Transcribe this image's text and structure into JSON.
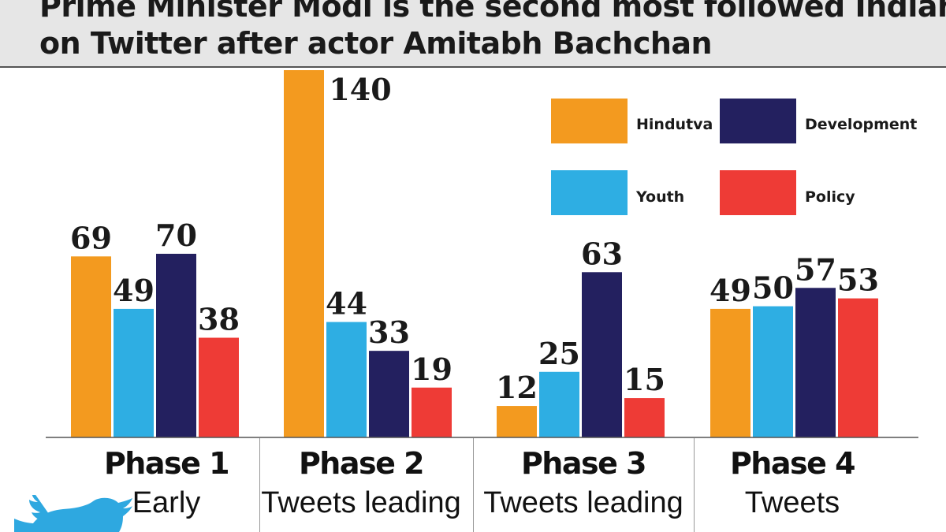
{
  "header": {
    "title_line_1": "Prime Minister Modi is the second most followed Indian",
    "title_line_2": "on Twitter after actor Amitabh Bachchan"
  },
  "colors": {
    "Hindutva": "#f39a1f",
    "Youth": "#2eaee3",
    "Development": "#23205f",
    "Policy": "#ee3b36"
  },
  "chart_data": {
    "type": "bar",
    "categories": [
      "Phase 1",
      "Phase 2",
      "Phase 3",
      "Phase 4"
    ],
    "category_descriptions": [
      "Early",
      "Tweets leading",
      "Tweets leading",
      "Tweets"
    ],
    "series": [
      {
        "name": "Hindutva",
        "values": [
          69,
          140,
          12,
          49
        ]
      },
      {
        "name": "Youth",
        "values": [
          49,
          44,
          25,
          50
        ]
      },
      {
        "name": "Development",
        "values": [
          70,
          33,
          63,
          57
        ]
      },
      {
        "name": "Policy",
        "values": [
          38,
          19,
          15,
          53
        ]
      }
    ],
    "legend_order": [
      "Hindutva",
      "Development",
      "Youth",
      "Policy"
    ],
    "legend_position": "top-right",
    "data_labels": true,
    "grid": false,
    "ylim": [
      0,
      140
    ]
  }
}
